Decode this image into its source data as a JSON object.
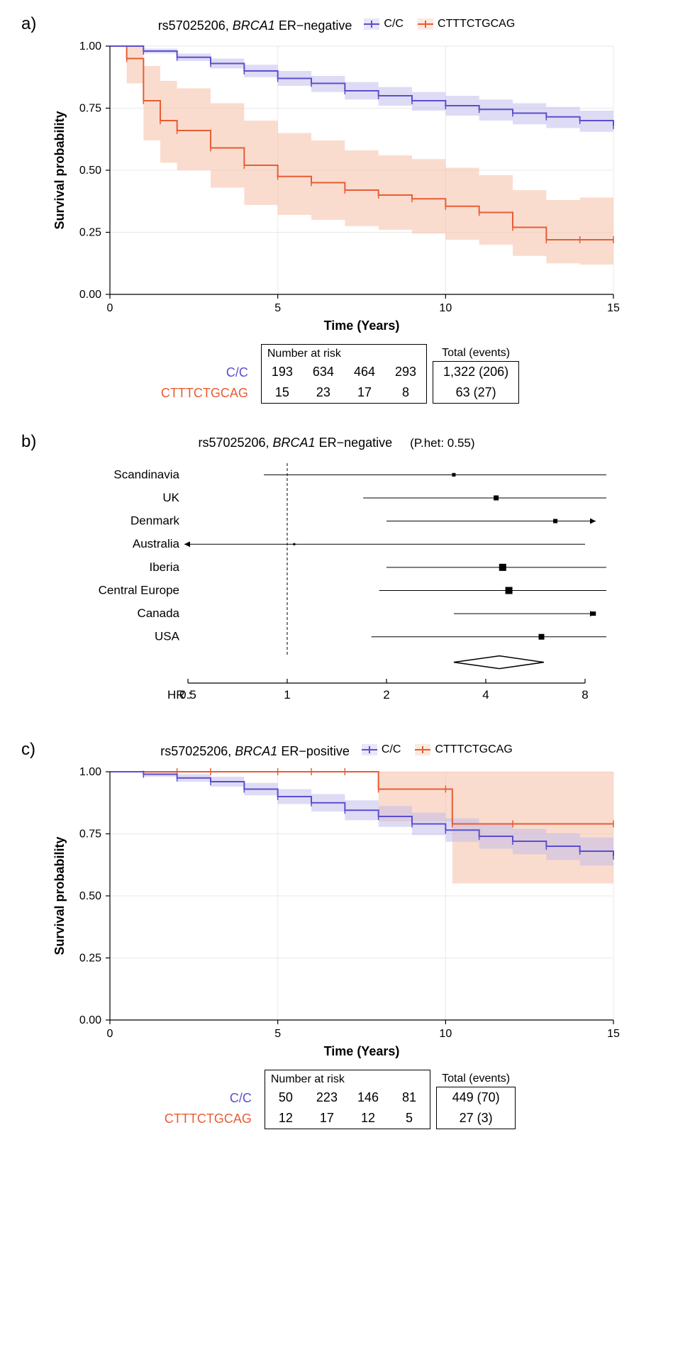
{
  "colors": {
    "purple": "#5a4fcf",
    "purple_fill": "#bdb7ec",
    "orange": "#e85c33",
    "orange_fill": "#f5c0a8",
    "grid": "#e8e8e8",
    "text": "#000000",
    "bg": "#ffffff"
  },
  "panel_a": {
    "label": "a)",
    "title_prefix": "rs57025206, ",
    "title_italic": "BRCA1",
    "title_suffix": " ER−negative",
    "type": "kaplan-meier",
    "legend": [
      {
        "label": "C/C",
        "color": "#5a4fcf",
        "fill": "#bdb7ec"
      },
      {
        "label": "CTTTCTGCAG",
        "color": "#e85c33",
        "fill": "#f5c0a8"
      }
    ],
    "x": {
      "label": "Time (Years)",
      "lim": [
        0,
        15
      ],
      "tick_step": 5,
      "ticks": [
        0,
        5,
        10,
        15
      ]
    },
    "y": {
      "label": "Survival probability",
      "lim": [
        0,
        1
      ],
      "tick_step": 0.25,
      "ticks": [
        0.0,
        0.25,
        0.5,
        0.75,
        1.0
      ]
    },
    "series_cc": {
      "line_color": "#5a4fcf",
      "fill_color": "#bdb7ec",
      "fill_opacity": 0.5,
      "points": [
        [
          0,
          1.0
        ],
        [
          1,
          0.98
        ],
        [
          2,
          0.955
        ],
        [
          3,
          0.93
        ],
        [
          4,
          0.9
        ],
        [
          5,
          0.87
        ],
        [
          6,
          0.85
        ],
        [
          7,
          0.82
        ],
        [
          8,
          0.8
        ],
        [
          9,
          0.78
        ],
        [
          10,
          0.76
        ],
        [
          11,
          0.745
        ],
        [
          12,
          0.73
        ],
        [
          13,
          0.715
        ],
        [
          14,
          0.7
        ],
        [
          15,
          0.68
        ]
      ],
      "ci_upper": [
        [
          0,
          1.0
        ],
        [
          1,
          0.99
        ],
        [
          2,
          0.97
        ],
        [
          3,
          0.95
        ],
        [
          4,
          0.925
        ],
        [
          5,
          0.9
        ],
        [
          6,
          0.88
        ],
        [
          7,
          0.855
        ],
        [
          8,
          0.835
        ],
        [
          9,
          0.815
        ],
        [
          10,
          0.8
        ],
        [
          11,
          0.785
        ],
        [
          12,
          0.77
        ],
        [
          13,
          0.755
        ],
        [
          14,
          0.74
        ],
        [
          15,
          0.725
        ]
      ],
      "ci_lower": [
        [
          0,
          1.0
        ],
        [
          1,
          0.97
        ],
        [
          2,
          0.94
        ],
        [
          3,
          0.91
        ],
        [
          4,
          0.875
        ],
        [
          5,
          0.84
        ],
        [
          6,
          0.815
        ],
        [
          7,
          0.785
        ],
        [
          8,
          0.76
        ],
        [
          9,
          0.74
        ],
        [
          10,
          0.72
        ],
        [
          11,
          0.7
        ],
        [
          12,
          0.685
        ],
        [
          13,
          0.67
        ],
        [
          14,
          0.655
        ],
        [
          15,
          0.635
        ]
      ]
    },
    "series_ct": {
      "line_color": "#e85c33",
      "fill_color": "#f5c0a8",
      "fill_opacity": 0.55,
      "points": [
        [
          0,
          1.0
        ],
        [
          0.5,
          0.95
        ],
        [
          1,
          0.78
        ],
        [
          1.5,
          0.7
        ],
        [
          2,
          0.66
        ],
        [
          3,
          0.59
        ],
        [
          4,
          0.52
        ],
        [
          5,
          0.475
        ],
        [
          6,
          0.45
        ],
        [
          7,
          0.42
        ],
        [
          8,
          0.4
        ],
        [
          9,
          0.385
        ],
        [
          10,
          0.355
        ],
        [
          11,
          0.33
        ],
        [
          12,
          0.27
        ],
        [
          13,
          0.22
        ],
        [
          14,
          0.22
        ],
        [
          15,
          0.22
        ]
      ],
      "ci_upper": [
        [
          0,
          1.0
        ],
        [
          0.5,
          1.0
        ],
        [
          1,
          0.92
        ],
        [
          1.5,
          0.86
        ],
        [
          2,
          0.83
        ],
        [
          3,
          0.77
        ],
        [
          4,
          0.7
        ],
        [
          5,
          0.65
        ],
        [
          6,
          0.62
        ],
        [
          7,
          0.58
        ],
        [
          8,
          0.56
        ],
        [
          9,
          0.545
        ],
        [
          10,
          0.51
        ],
        [
          11,
          0.48
        ],
        [
          12,
          0.42
        ],
        [
          13,
          0.38
        ],
        [
          14,
          0.39
        ],
        [
          15,
          0.4
        ]
      ],
      "ci_lower": [
        [
          0,
          1.0
        ],
        [
          0.5,
          0.85
        ],
        [
          1,
          0.62
        ],
        [
          1.5,
          0.53
        ],
        [
          2,
          0.5
        ],
        [
          3,
          0.43
        ],
        [
          4,
          0.36
        ],
        [
          5,
          0.32
        ],
        [
          6,
          0.3
        ],
        [
          7,
          0.275
        ],
        [
          8,
          0.26
        ],
        [
          9,
          0.245
        ],
        [
          10,
          0.22
        ],
        [
          11,
          0.2
        ],
        [
          12,
          0.155
        ],
        [
          13,
          0.125
        ],
        [
          14,
          0.12
        ],
        [
          15,
          0.115
        ]
      ]
    },
    "risk_table": {
      "header": "Number at risk",
      "summary_header": "Total (events)",
      "rows": [
        {
          "label": "C/C",
          "color": "#5a4fcf",
          "values": [
            193,
            634,
            464,
            293
          ],
          "summary": "1,322 (206)"
        },
        {
          "label": "CTTTCTGCAG",
          "color": "#e85c33",
          "values": [
            15,
            23,
            17,
            8
          ],
          "summary": "63 (27)"
        }
      ]
    }
  },
  "panel_b": {
    "label": "b)",
    "type": "forest",
    "title_prefix": "rs57025206, ",
    "title_italic": "BRCA1",
    "title_suffix": " ER−negative",
    "phet": "(P.het: 0.55)",
    "hr_label": "HR :",
    "x": {
      "scale": "log",
      "ticks": [
        0.5,
        1,
        2,
        4,
        8
      ]
    },
    "ref_line": 1,
    "rows": [
      {
        "label": "Scandinavia",
        "hr": 3.2,
        "lo": 0.85,
        "hi": 11.0,
        "size": 5
      },
      {
        "label": "UK",
        "hr": 4.3,
        "lo": 1.7,
        "hi": 10.5,
        "size": 7
      },
      {
        "label": "Denmark",
        "hr": 6.5,
        "lo": 2.0,
        "hi": 20.0,
        "size": 6,
        "arrow_right": true
      },
      {
        "label": "Australia",
        "hr": 1.05,
        "lo": 0.15,
        "hi": 8.0,
        "size": 3,
        "arrow_left": true
      },
      {
        "label": "Iberia",
        "hr": 4.5,
        "lo": 2.0,
        "hi": 9.5,
        "size": 10
      },
      {
        "label": "Central Europe",
        "hr": 4.7,
        "lo": 1.9,
        "hi": 10.0,
        "size": 10
      },
      {
        "label": "Canada",
        "hr": 8.5,
        "lo": 3.2,
        "hi": 22.0,
        "size": 6,
        "arrow_right": true
      },
      {
        "label": "USA",
        "hr": 5.9,
        "lo": 1.8,
        "hi": 17.0,
        "size": 8
      }
    ],
    "diamond": {
      "hr": 4.4,
      "lo": 3.2,
      "hi": 6.0
    }
  },
  "panel_c": {
    "label": "c)",
    "title_prefix": "rs57025206, ",
    "title_italic": "BRCA1",
    "title_suffix": " ER−positive",
    "type": "kaplan-meier",
    "legend": [
      {
        "label": "C/C",
        "color": "#5a4fcf",
        "fill": "#bdb7ec"
      },
      {
        "label": "CTTTCTGCAG",
        "color": "#e85c33",
        "fill": "#f5c0a8"
      }
    ],
    "x": {
      "label": "Time (Years)",
      "lim": [
        0,
        15
      ],
      "tick_step": 5,
      "ticks": [
        0,
        5,
        10,
        15
      ]
    },
    "y": {
      "label": "Survival probability",
      "lim": [
        0,
        1
      ],
      "tick_step": 0.25,
      "ticks": [
        0.0,
        0.25,
        0.5,
        0.75,
        1.0
      ]
    },
    "series_cc": {
      "line_color": "#5a4fcf",
      "fill_color": "#bdb7ec",
      "fill_opacity": 0.5,
      "points": [
        [
          0,
          1.0
        ],
        [
          1,
          0.99
        ],
        [
          2,
          0.975
        ],
        [
          3,
          0.96
        ],
        [
          4,
          0.93
        ],
        [
          5,
          0.9
        ],
        [
          6,
          0.875
        ],
        [
          7,
          0.845
        ],
        [
          8,
          0.82
        ],
        [
          9,
          0.79
        ],
        [
          10,
          0.765
        ],
        [
          11,
          0.74
        ],
        [
          12,
          0.72
        ],
        [
          13,
          0.7
        ],
        [
          14,
          0.68
        ],
        [
          15,
          0.66
        ]
      ],
      "ci_upper": [
        [
          0,
          1.0
        ],
        [
          1,
          1.0
        ],
        [
          2,
          0.99
        ],
        [
          3,
          0.98
        ],
        [
          4,
          0.955
        ],
        [
          5,
          0.93
        ],
        [
          6,
          0.91
        ],
        [
          7,
          0.885
        ],
        [
          8,
          0.862
        ],
        [
          9,
          0.835
        ],
        [
          10,
          0.812
        ],
        [
          11,
          0.79
        ],
        [
          12,
          0.77
        ],
        [
          13,
          0.752
        ],
        [
          14,
          0.735
        ],
        [
          15,
          0.715
        ]
      ],
      "ci_lower": [
        [
          0,
          1.0
        ],
        [
          1,
          0.98
        ],
        [
          2,
          0.96
        ],
        [
          3,
          0.94
        ],
        [
          4,
          0.905
        ],
        [
          5,
          0.87
        ],
        [
          6,
          0.84
        ],
        [
          7,
          0.805
        ],
        [
          8,
          0.778
        ],
        [
          9,
          0.745
        ],
        [
          10,
          0.718
        ],
        [
          11,
          0.69
        ],
        [
          12,
          0.668
        ],
        [
          13,
          0.645
        ],
        [
          14,
          0.622
        ],
        [
          15,
          0.6
        ]
      ]
    },
    "series_ct": {
      "line_color": "#e85c33",
      "fill_color": "#f5c0a8",
      "fill_opacity": 0.55,
      "points": [
        [
          0,
          1.0
        ],
        [
          2,
          1.0
        ],
        [
          3,
          1.0
        ],
        [
          5,
          1.0
        ],
        [
          6,
          1.0
        ],
        [
          7,
          1.0
        ],
        [
          8,
          0.93
        ],
        [
          10,
          0.93
        ],
        [
          10.2,
          0.79
        ],
        [
          12,
          0.79
        ],
        [
          15,
          0.79
        ]
      ],
      "ci_upper": [
        [
          0,
          1.0
        ],
        [
          8,
          1.0
        ],
        [
          10,
          1.0
        ],
        [
          10.2,
          1.0
        ],
        [
          15,
          1.0
        ]
      ],
      "ci_lower": [
        [
          0,
          1.0
        ],
        [
          7.9,
          1.0
        ],
        [
          8,
          0.8
        ],
        [
          10,
          0.8
        ],
        [
          10.2,
          0.55
        ],
        [
          15,
          0.59
        ]
      ]
    },
    "risk_table": {
      "header": "Number at risk",
      "summary_header": "Total (events)",
      "rows": [
        {
          "label": "C/C",
          "color": "#5a4fcf",
          "values": [
            50,
            223,
            146,
            81
          ],
          "summary": "449 (70)"
        },
        {
          "label": "CTTTCTGCAG",
          "color": "#e85c33",
          "values": [
            12,
            17,
            12,
            5
          ],
          "summary": "27 (3)"
        }
      ]
    }
  }
}
